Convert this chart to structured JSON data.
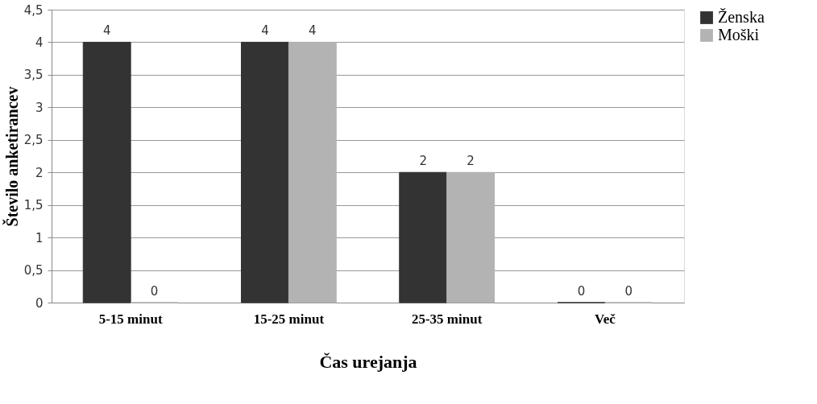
{
  "chart_data": {
    "type": "bar",
    "xlabel": "Čas urejanja",
    "ylabel": "Število anketirancev",
    "categories": [
      "5-15 minut",
      "15-25 minut",
      "25-35 minut",
      "Več"
    ],
    "series": [
      {
        "name": "Ženska",
        "color": "#333333",
        "values": [
          4,
          4,
          2,
          0
        ]
      },
      {
        "name": "Moški",
        "color": "#b3b3b3",
        "values": [
          0,
          4,
          2,
          0
        ]
      }
    ],
    "ylim": [
      0,
      4.5
    ],
    "yticks": [
      0,
      {
        "value": 0.5,
        "label": "0,5"
      },
      1,
      {
        "value": 1.5,
        "label": "1,5"
      },
      2,
      {
        "value": 2.5,
        "label": "2,5"
      },
      3,
      {
        "value": 3.5,
        "label": "3,5"
      },
      4,
      {
        "value": 4.5,
        "label": "4,5"
      }
    ],
    "grid": "y",
    "legend": "right",
    "data_labels": true
  }
}
